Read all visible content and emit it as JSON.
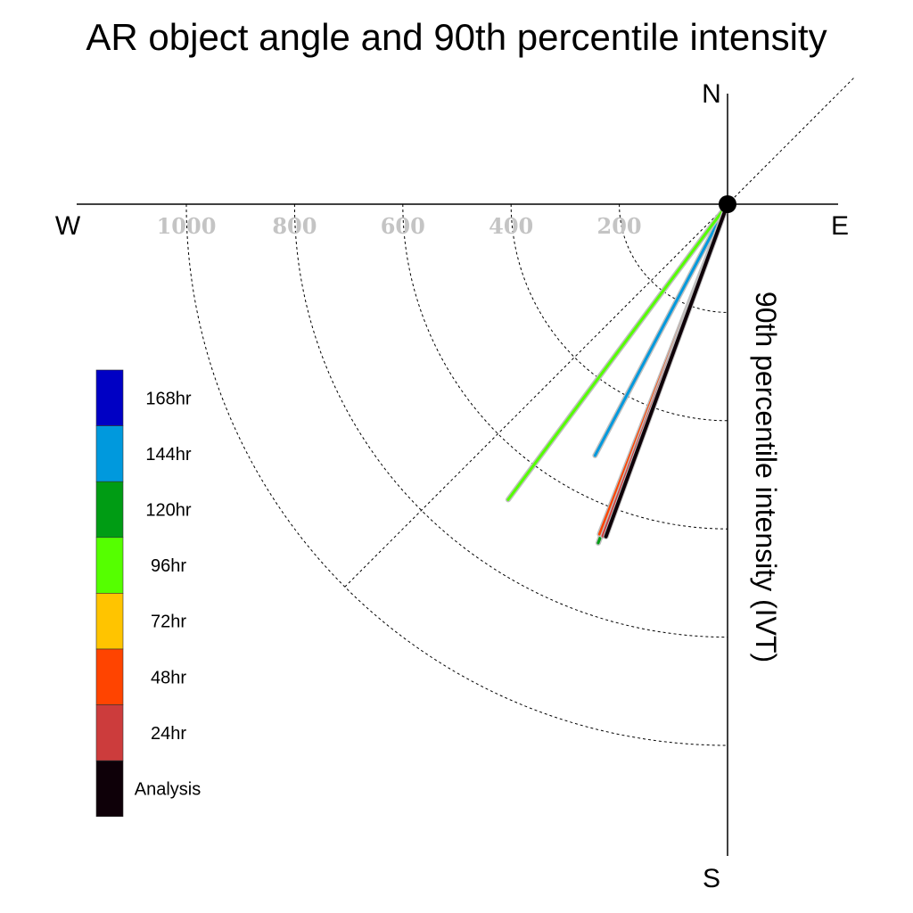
{
  "chart_data": {
    "type": "polar-vector",
    "title": "AR object angle and 90th percentile intensity",
    "ylabel": "90th percentile intensity (IVT)",
    "directions": {
      "north": "N",
      "south": "S",
      "east": "E",
      "west": "W"
    },
    "radial_ticks": [
      "1000",
      "800",
      "600",
      "400",
      "200"
    ],
    "radial_tick_values": [
      1000,
      800,
      600,
      400,
      200
    ],
    "radial_max": 1200,
    "angle_reference_deg": 45,
    "series": [
      {
        "name": "Analysis",
        "color": "#0e0008",
        "bearing_deg": 200.1,
        "intensity": 654
      },
      {
        "name": "24hr",
        "color": "#cc3c3c",
        "bearing_deg": 200.6,
        "intensity": 655
      },
      {
        "name": "48hr",
        "color": "#ff4400",
        "bearing_deg": 201.2,
        "intensity": 654
      },
      {
        "name": "72hr",
        "color": "#ffc400",
        "bearing_deg": 200.9,
        "intensity": 650
      },
      {
        "name": "96hr",
        "color": "#55ff00",
        "bearing_deg": 216.6,
        "intensity": 680
      },
      {
        "name": "120hr",
        "color": "#009c14",
        "bearing_deg": 200.9,
        "intensity": 670
      },
      {
        "name": "144hr",
        "color": "#0099dd",
        "bearing_deg": 207.8,
        "intensity": 525
      },
      {
        "name": "168hr",
        "color": "#0000c4",
        "bearing_deg": null,
        "intensity": null
      }
    ],
    "legend": {
      "placement": "left",
      "items": [
        "168hr",
        "144hr",
        "120hr",
        "96hr",
        "72hr",
        "48hr",
        "24hr",
        "Analysis"
      ]
    }
  }
}
